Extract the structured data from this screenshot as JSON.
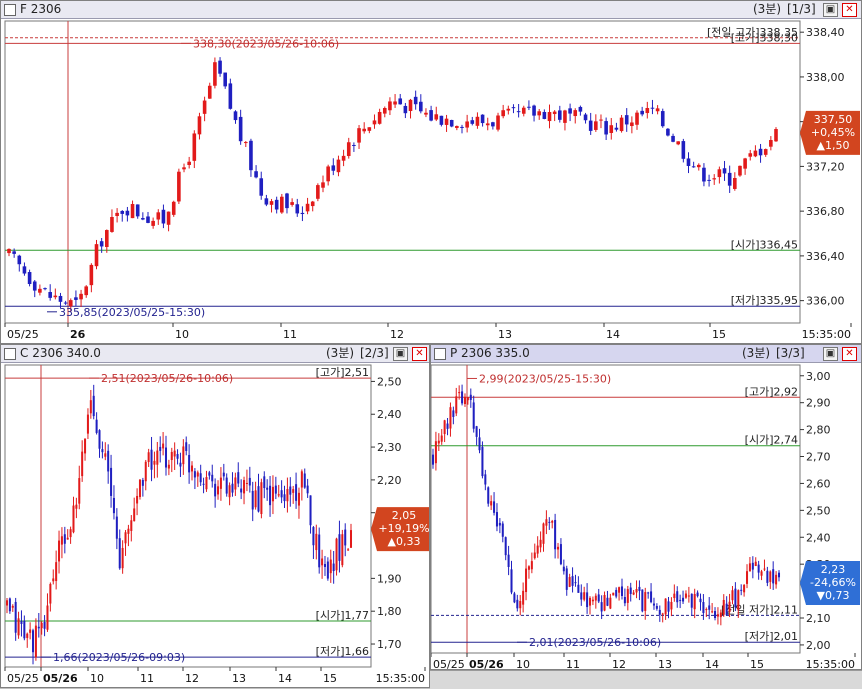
{
  "panes": [
    {
      "id": "F",
      "title": "F 2306",
      "period": "(3분)",
      "index": "[1/3]",
      "y_ticks": [
        "338,40",
        "338,00",
        "337,60",
        "337,20",
        "336,80",
        "336,40",
        "336,00"
      ],
      "x_ticks": [
        "05/25",
        "26",
        "10",
        "11",
        "12",
        "13",
        "14",
        "15",
        "15:35:00"
      ],
      "high_marker": "338,30(2023/05/26-10:06)",
      "low_marker": "335,85(2023/05/25-15:30)",
      "line_labels": [
        "[전일 고가]338,35",
        "[고가]338,30",
        "[시가]336,45",
        "[저가]335,95"
      ],
      "price_tag": [
        "337,50",
        "+0,45%",
        "▲1,50"
      ],
      "colors": {
        "tag_bg": "#d2451f"
      }
    },
    {
      "id": "C",
      "title": "C 2306 340.0",
      "period": "(3분)",
      "index": "[2/3]",
      "y_ticks": [
        "2,50",
        "2,40",
        "2,30",
        "2,20",
        "2,10",
        "1,90",
        "1,80",
        "1,70"
      ],
      "x_ticks": [
        "05/25",
        "05/26",
        "10",
        "11",
        "12",
        "13",
        "14",
        "15",
        "15:35:00"
      ],
      "high_marker": "2,51(2023/05/26-10:06)",
      "low_marker": "1,66(2023/05/26-09:03)",
      "line_labels": [
        "[고가]2,51",
        "[시가]1,77",
        "[저가]1,66"
      ],
      "price_tag": [
        "2,05",
        "+19,19%",
        "▲0,33"
      ],
      "colors": {
        "tag_bg": "#d2451f"
      }
    },
    {
      "id": "P",
      "title": "P 2306 335.0",
      "period": "(3분)",
      "index": "[3/3]",
      "y_ticks": [
        "3,00",
        "2,90",
        "2,80",
        "2,70",
        "2,60",
        "2,50",
        "2,40",
        "2,30",
        "2,10",
        "2,00"
      ],
      "x_ticks": [
        "05/25",
        "05/26",
        "10",
        "11",
        "12",
        "13",
        "14",
        "15",
        "15:35:00"
      ],
      "high_marker": "2,99(2023/05/25-15:30)",
      "low_marker": "2,01(2023/05/26-10:06)",
      "line_labels": [
        "[고가]2,92",
        "[시가]2,74",
        "[전일 저가]2,11",
        "[저가]2,01"
      ],
      "price_tag": [
        "2,23",
        "-24,66%",
        "▼0,73"
      ],
      "colors": {
        "tag_bg": "#2f6fd6"
      }
    }
  ],
  "colors": {
    "up": "#e21a1a",
    "down": "#1f1fc0",
    "high_line": "#c83c3c",
    "open_line": "#2e9a2e",
    "low_line": "#23238f",
    "grid": "#dcdcdc"
  }
}
